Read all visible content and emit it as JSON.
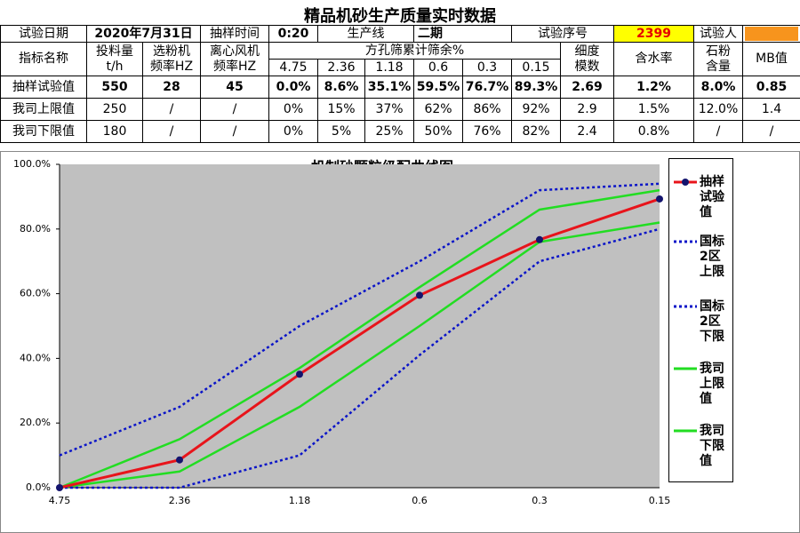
{
  "title": "精品机砂生产质量实时数据",
  "table": {
    "info": [
      "试验日期",
      "2020年7月31日",
      "抽样时间",
      "0:20",
      "生产线",
      "二期",
      "试验序号",
      "2399",
      "试验人"
    ],
    "header": [
      "指标名称",
      "投料量\nt/h",
      "选粉机\n频率HZ",
      "离心风机\n频率HZ",
      "方孔筛累计筛余%",
      "细度\n模数",
      "含水率",
      "石粉\n含量",
      "MB值"
    ],
    "sieves": [
      "4.75",
      "2.36",
      "1.18",
      "0.6",
      "0.3",
      "0.15"
    ],
    "rows": [
      [
        "抽样试验值",
        "550",
        "28",
        "45",
        "0.0%",
        "8.6%",
        "35.1%",
        "59.5%",
        "76.7%",
        "89.3%",
        "2.69",
        "1.2%",
        "8.0%",
        "0.85"
      ],
      [
        "我司上限值",
        "250",
        "/",
        "/",
        "0%",
        "15%",
        "37%",
        "62%",
        "86%",
        "92%",
        "2.9",
        "1.5%",
        "12.0%",
        "1.4"
      ],
      [
        "我司下限值",
        "180",
        "/",
        "/",
        "0%",
        "5%",
        "25%",
        "50%",
        "76%",
        "82%",
        "2.4",
        "0.8%",
        "/",
        "/"
      ]
    ]
  },
  "chart_data": {
    "type": "line",
    "title": "机制砂颗粒级配曲线图",
    "categories": [
      "4.75",
      "2.36",
      "1.18",
      "0.6",
      "0.3",
      "0.15"
    ],
    "ylim": [
      0,
      100
    ],
    "yticks": [
      {
        "value": 0,
        "label": "0.0%"
      },
      {
        "value": 20,
        "label": "20.0%"
      },
      {
        "value": 40,
        "label": "40.0%"
      },
      {
        "value": 60,
        "label": "60.0%"
      },
      {
        "value": 80,
        "label": "80.0%"
      },
      {
        "value": 100,
        "label": "100.0%"
      }
    ],
    "background": "#c0c0c0",
    "legend": "right",
    "series": [
      {
        "name": "抽样试验值",
        "color": "#e8141b",
        "style": "solid",
        "marker": "circle",
        "marker_color": "#14146e",
        "values": [
          0,
          8.6,
          35.1,
          59.5,
          76.7,
          89.3
        ]
      },
      {
        "name": "国标2区上限",
        "color": "#0a14c8",
        "style": "dotted",
        "values": [
          10,
          25,
          50,
          70,
          92,
          94
        ]
      },
      {
        "name": "国标2区下限",
        "color": "#0a14c8",
        "style": "dotted",
        "values": [
          0,
          0,
          10,
          41,
          70,
          80
        ]
      },
      {
        "name": "我司上限值",
        "color": "#22dd22",
        "style": "solid",
        "values": [
          0,
          15,
          37,
          62,
          86,
          92
        ]
      },
      {
        "name": "我司下限值",
        "color": "#22dd22",
        "style": "solid",
        "values": [
          0,
          5,
          25,
          50,
          76,
          82
        ]
      }
    ]
  }
}
